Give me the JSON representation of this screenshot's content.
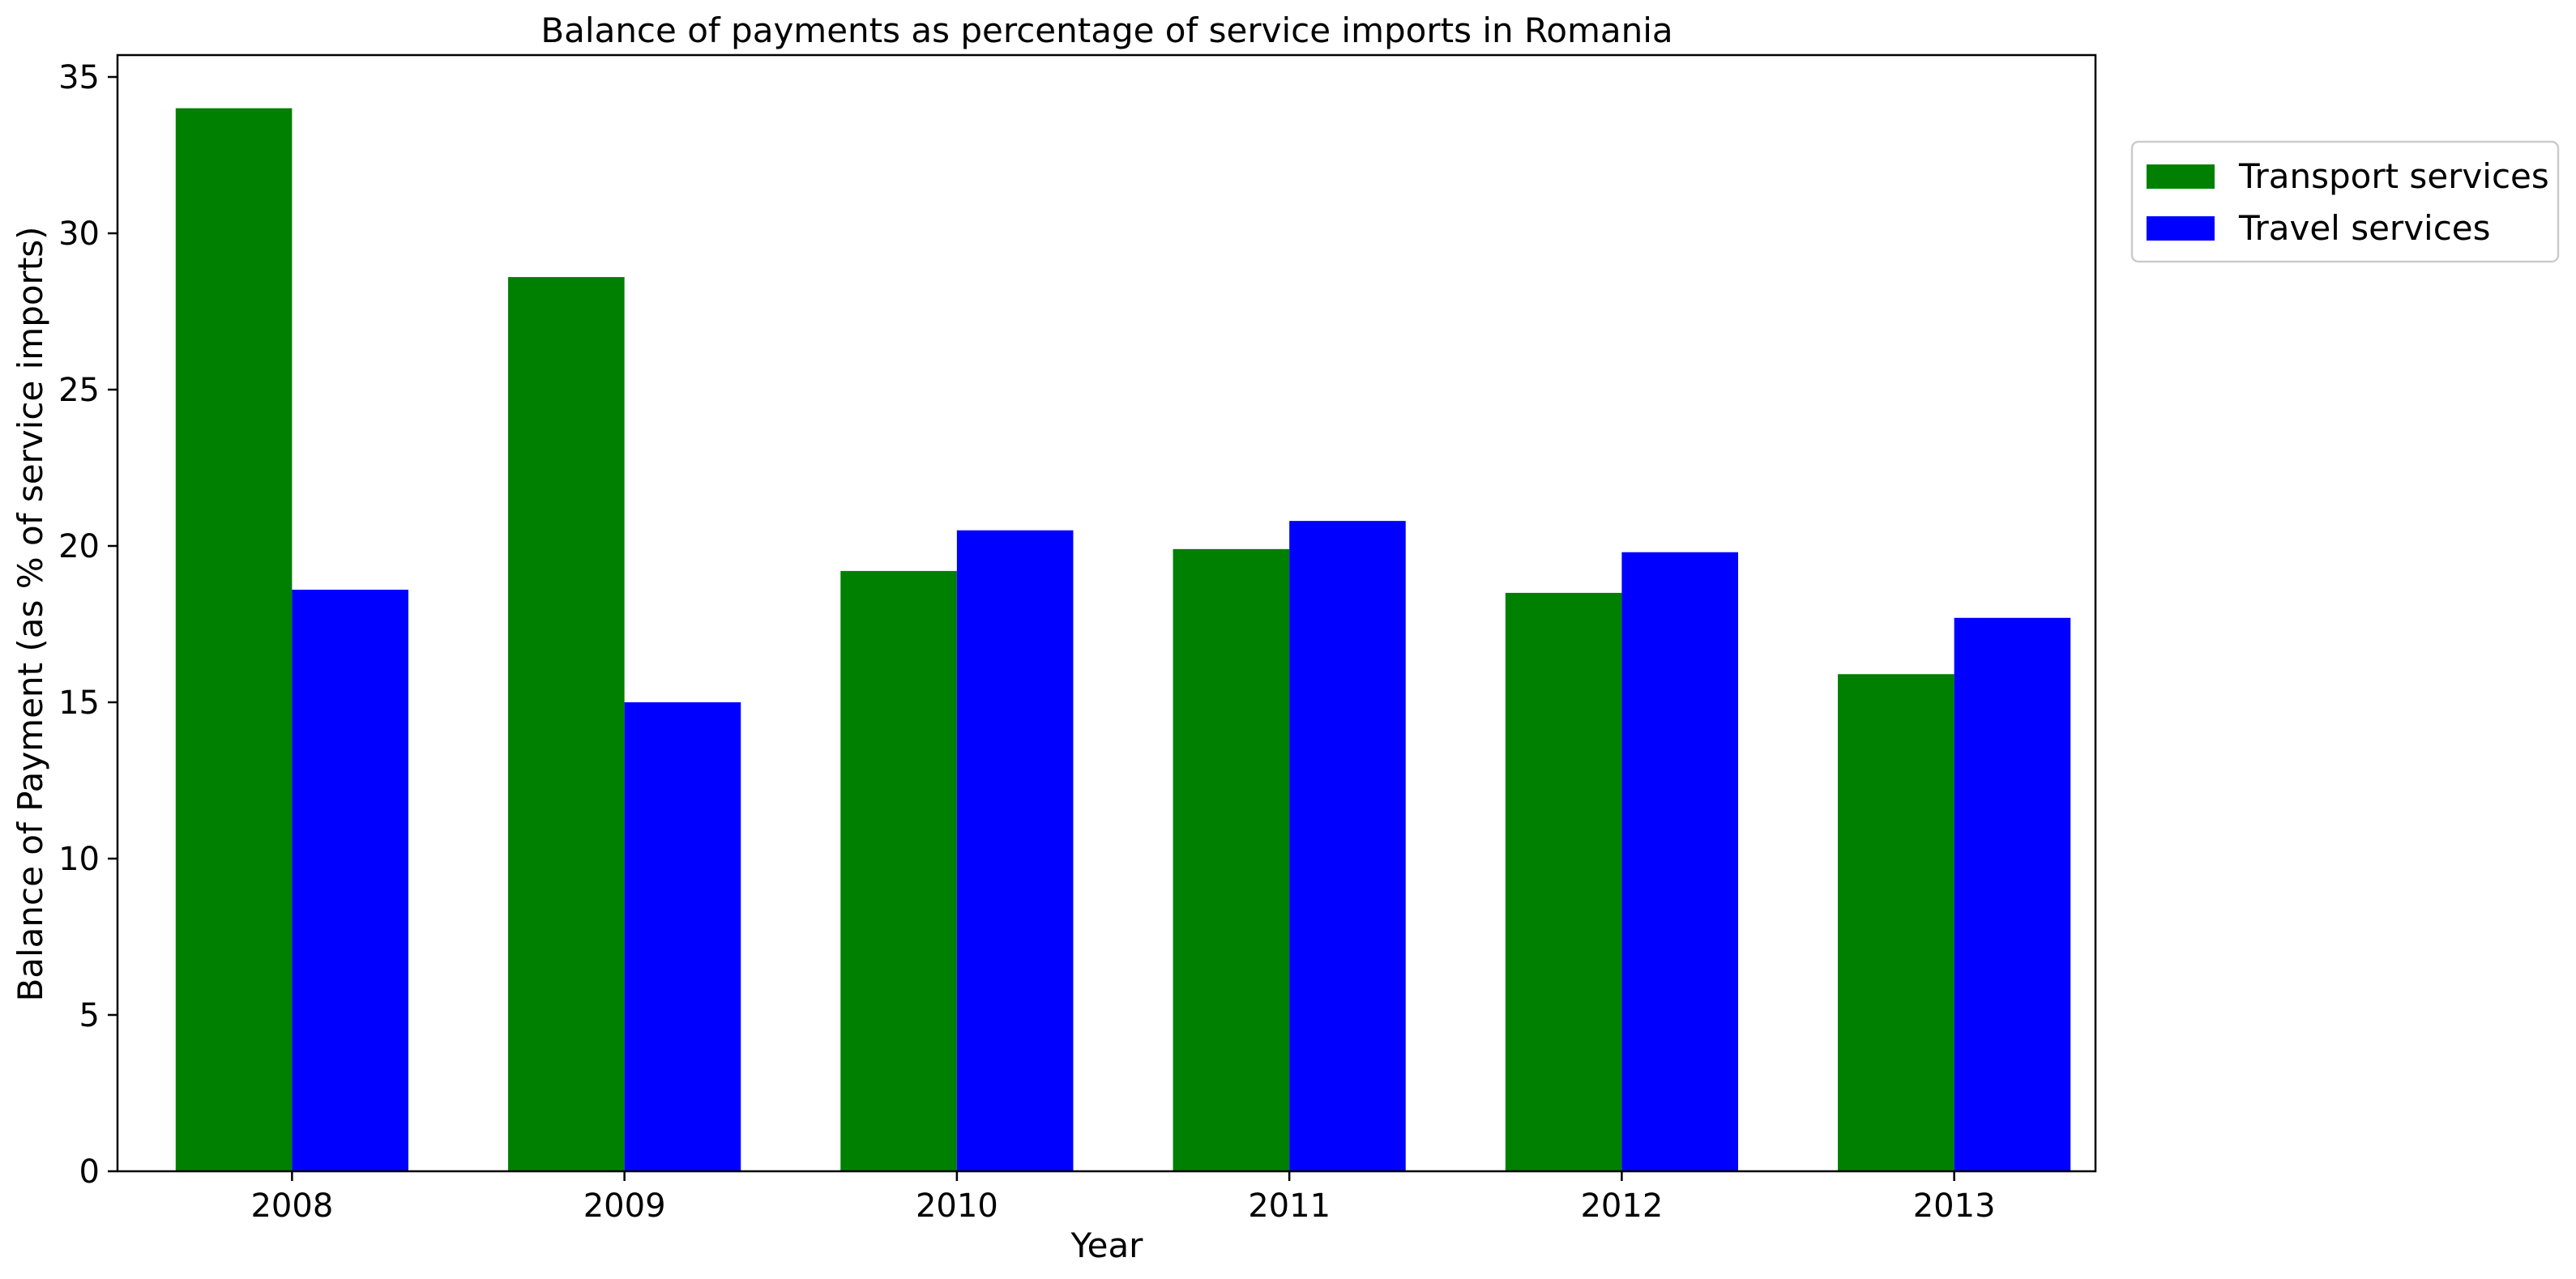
{
  "chart_data": {
    "type": "bar",
    "title": "Balance of payments as percentage of service imports in Romania",
    "xlabel": "Year",
    "ylabel": "Balance of Payment (as % of service imports)",
    "categories": [
      "2008",
      "2009",
      "2010",
      "2011",
      "2012",
      "2013"
    ],
    "series": [
      {
        "name": "Transport services",
        "color": "#008000",
        "values": [
          34.0,
          28.6,
          19.2,
          19.9,
          18.5,
          15.9
        ]
      },
      {
        "name": "Travel services",
        "color": "#0000ff",
        "values": [
          18.6,
          15.0,
          20.5,
          20.8,
          19.8,
          17.7
        ]
      }
    ],
    "ylim": [
      0,
      35.7
    ],
    "yticks": [
      0,
      5,
      10,
      15,
      20,
      25,
      30,
      35
    ],
    "grid": false,
    "legend_position": "outside-top-right"
  }
}
